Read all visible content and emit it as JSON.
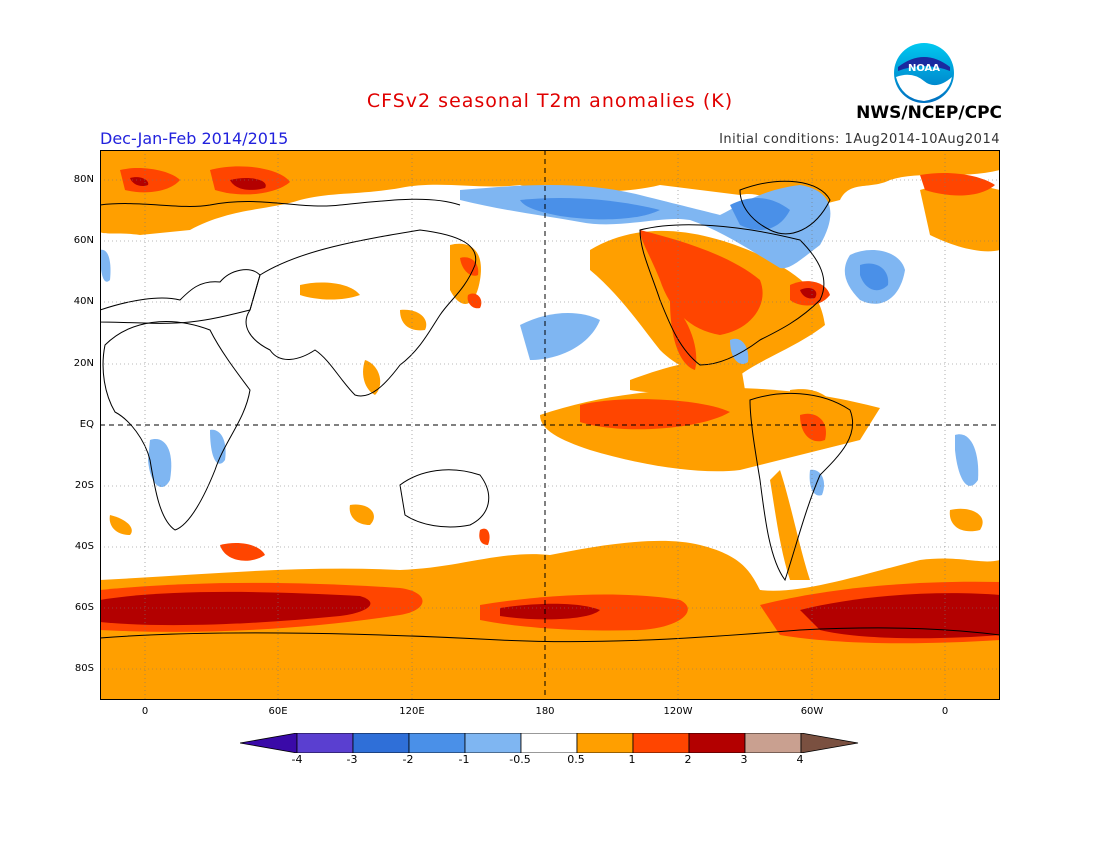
{
  "header": {
    "title": "CFSv2 seasonal T2m anomalies (K)",
    "season": "Dec-Jan-Feb 2014/2015",
    "initial_conditions": "Initial conditions: 1Aug2014-10Aug2014",
    "agency": "NWS/NCEP/CPC",
    "logo_text": "NOAA"
  },
  "axes": {
    "lat_labels": [
      "80N",
      "60N",
      "40N",
      "20N",
      "EQ",
      "20S",
      "40S",
      "60S",
      "80S"
    ],
    "lon_labels": [
      "0",
      "60E",
      "120E",
      "180",
      "120W",
      "60W",
      "0"
    ]
  },
  "colorbar": {
    "labels": [
      "-4",
      "-3",
      "-2",
      "-1",
      "-0.5",
      "0.5",
      "1",
      "2",
      "3",
      "4"
    ],
    "colors": [
      "#3a0aa8",
      "#5a3fd0",
      "#2f6fd8",
      "#4a90e8",
      "#7fb6f2",
      "#ffffff",
      "#ff9f00",
      "#ff4500",
      "#b30000",
      "#c9a090",
      "#7a5040"
    ]
  },
  "colors": {
    "title": "#e00000",
    "season": "#2222dd",
    "warm1": "#ff9f00",
    "warm2": "#ff4500",
    "warm3": "#b30000",
    "warm4": "#c9a090",
    "cool1": "#7fb6f2",
    "cool2": "#4a90e8",
    "cool3": "#2f6fd8"
  }
}
